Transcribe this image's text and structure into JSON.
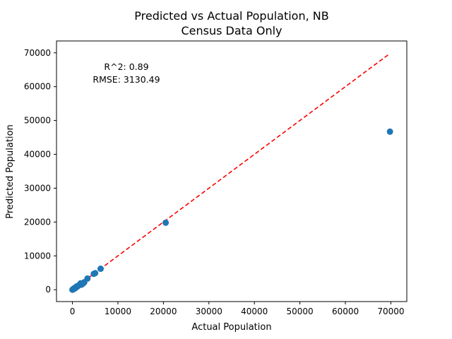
{
  "chart_data": {
    "type": "scatter",
    "title": "Predicted vs Actual Population, NB",
    "subtitle": "Census Data Only",
    "xlabel": "Actual Population",
    "ylabel": "Predicted Population",
    "xlim": [
      -3500,
      73500
    ],
    "ylim": [
      -3500,
      73500
    ],
    "xticks": [
      0,
      10000,
      20000,
      30000,
      40000,
      50000,
      60000,
      70000
    ],
    "yticks": [
      0,
      10000,
      20000,
      30000,
      40000,
      50000,
      60000,
      70000
    ],
    "xtick_labels": [
      "0",
      "10000",
      "20000",
      "30000",
      "40000",
      "50000",
      "60000",
      "70000"
    ],
    "ytick_labels": [
      "0",
      "10000",
      "20000",
      "30000",
      "40000",
      "50000",
      "60000",
      "70000"
    ],
    "annotation_r2": "R^2: 0.89",
    "annotation_rmse": "RMSE: 3130.49",
    "grid": false,
    "point_color": "#1f77b4",
    "reference_line_color": "#ff0000",
    "reference_line": [
      [
        0,
        0
      ],
      [
        69800,
        69800
      ]
    ],
    "points": [
      {
        "x": 0,
        "y": 0
      },
      {
        "x": 80,
        "y": 60
      },
      {
        "x": 150,
        "y": 120
      },
      {
        "x": 250,
        "y": 180
      },
      {
        "x": 300,
        "y": 350
      },
      {
        "x": 400,
        "y": 300
      },
      {
        "x": 500,
        "y": 520
      },
      {
        "x": 600,
        "y": 450
      },
      {
        "x": 700,
        "y": 650
      },
      {
        "x": 800,
        "y": 700
      },
      {
        "x": 900,
        "y": 950
      },
      {
        "x": 1000,
        "y": 850
      },
      {
        "x": 1200,
        "y": 1100
      },
      {
        "x": 1400,
        "y": 1300
      },
      {
        "x": 1600,
        "y": 1450
      },
      {
        "x": 1800,
        "y": 1900
      },
      {
        "x": 2000,
        "y": 1500
      },
      {
        "x": 2300,
        "y": 1800
      },
      {
        "x": 2600,
        "y": 2200
      },
      {
        "x": 3300,
        "y": 3300
      },
      {
        "x": 4700,
        "y": 4700
      },
      {
        "x": 5000,
        "y": 4900
      },
      {
        "x": 6200,
        "y": 6200
      },
      {
        "x": 20500,
        "y": 19800
      },
      {
        "x": 69800,
        "y": 46700
      }
    ]
  }
}
